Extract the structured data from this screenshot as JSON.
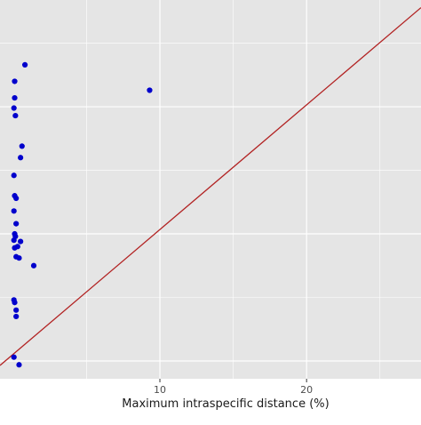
{
  "chart_data": {
    "type": "scatter",
    "title": "",
    "xlabel": "Maximum intraspecific distance (%)",
    "ylabel": "",
    "xlim": [
      -0.9,
      27.8
    ],
    "ylim": [
      -1.4,
      28.4
    ],
    "x_ticks": [
      10,
      20
    ],
    "x_tick_labels": [
      "10",
      "20"
    ],
    "x_minor_ticks": [
      5,
      15,
      25
    ],
    "y_major_ticks": [
      0,
      10,
      20
    ],
    "y_minor_ticks": [
      5,
      15,
      25
    ],
    "grid": true,
    "colors": {
      "panel": "#e5e5e5",
      "grid": "#ffffff",
      "points": "#0000cc",
      "line": "#b22222"
    },
    "points": {
      "x": [
        0.8,
        0.1,
        0.1,
        0.05,
        0.15,
        0.6,
        0.5,
        0.05,
        0.1,
        0.2,
        0.05,
        0.2,
        0.1,
        0.15,
        0.05,
        0.5,
        0.3,
        0.1,
        0.2,
        0.4,
        1.4,
        0.05,
        0.1,
        0.2,
        0.2,
        0.05,
        0.4,
        9.3
      ],
      "y": [
        23.3,
        22.0,
        20.7,
        19.9,
        19.3,
        16.9,
        16.0,
        14.6,
        13.0,
        12.8,
        11.8,
        10.8,
        10.0,
        9.8,
        9.5,
        9.4,
        9.0,
        8.9,
        8.2,
        8.1,
        7.5,
        4.8,
        4.6,
        4.0,
        3.5,
        0.3,
        -0.3,
        21.3
      ]
    },
    "trend_line": {
      "x": [
        -0.9,
        27.8
      ],
      "y": [
        -0.35,
        27.8
      ]
    }
  }
}
